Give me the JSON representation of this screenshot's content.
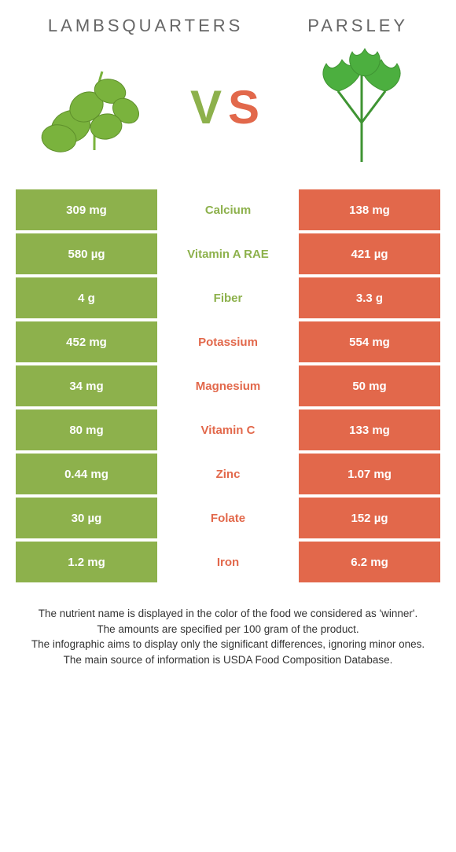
{
  "header": {
    "left_title": "Lambsquarters",
    "right_title": "Parsley",
    "vs_v": "V",
    "vs_s": "S"
  },
  "colors": {
    "left": "#8db14c",
    "right": "#e2684b",
    "bg": "#ffffff",
    "title_text": "#666666",
    "cell_text": "#ffffff"
  },
  "table": {
    "rows": [
      {
        "left": "309 mg",
        "label": "Calcium",
        "right": "138 mg",
        "winner": "left"
      },
      {
        "left": "580 µg",
        "label": "Vitamin A RAE",
        "right": "421 µg",
        "winner": "left"
      },
      {
        "left": "4 g",
        "label": "Fiber",
        "right": "3.3 g",
        "winner": "left"
      },
      {
        "left": "452 mg",
        "label": "Potassium",
        "right": "554 mg",
        "winner": "right"
      },
      {
        "left": "34 mg",
        "label": "Magnesium",
        "right": "50 mg",
        "winner": "right"
      },
      {
        "left": "80 mg",
        "label": "Vitamin C",
        "right": "133 mg",
        "winner": "right"
      },
      {
        "left": "0.44 mg",
        "label": "Zinc",
        "right": "1.07 mg",
        "winner": "right"
      },
      {
        "left": "30 µg",
        "label": "Folate",
        "right": "152 µg",
        "winner": "right"
      },
      {
        "left": "1.2 mg",
        "label": "Iron",
        "right": "6.2 mg",
        "winner": "right"
      }
    ]
  },
  "footer": {
    "line1": "The nutrient name is displayed in the color of the food we considered as 'winner'.",
    "line2": "The amounts are specified per 100 gram of the product.",
    "line3": "The infographic aims to display only the significant differences, ignoring minor ones.",
    "line4": "The main source of information is USDA Food Composition Database."
  }
}
